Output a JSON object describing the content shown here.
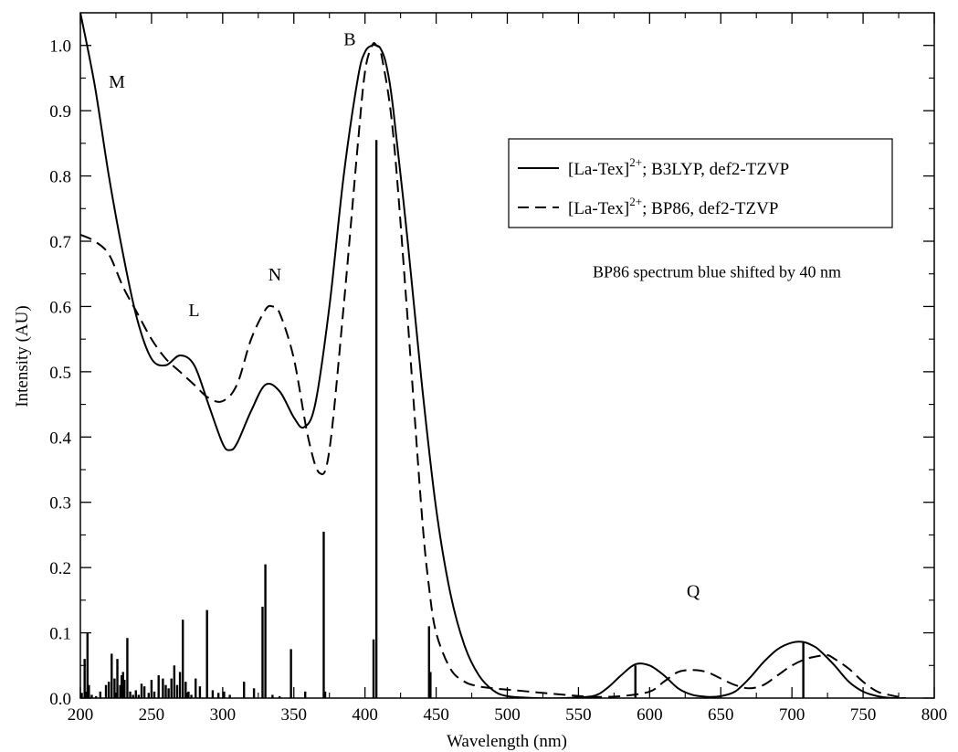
{
  "chart_data": {
    "type": "line",
    "xlabel": "Wavelength (nm)",
    "ylabel": "Intensity (AU)",
    "xlim": [
      200,
      800
    ],
    "ylim": [
      0.0,
      1.05
    ],
    "xticks": [
      200,
      250,
      300,
      350,
      400,
      450,
      500,
      550,
      600,
      650,
      700,
      750,
      800
    ],
    "xtick_labels": [
      "200",
      "250",
      "300",
      "350",
      "400",
      "450",
      "500",
      "550",
      "600",
      "650",
      "700",
      "750",
      "800"
    ],
    "yticks": [
      0.0,
      0.1,
      0.2,
      0.3,
      0.4,
      0.5,
      0.6,
      0.7,
      0.8,
      0.9,
      1.0
    ],
    "ytick_labels": [
      "0.0",
      "0.1",
      "0.2",
      "0.3",
      "0.4",
      "0.5",
      "0.6",
      "0.7",
      "0.8",
      "0.9",
      "1.0"
    ],
    "grid": false,
    "legend_position": "right",
    "series": [
      {
        "name_main": "[La-Tex]",
        "name_sup": "2+",
        "name_rest": "; B3LYP, def2-TZVP",
        "style": "solid",
        "x": [
          200,
          210,
          220,
          230,
          240,
          250,
          260,
          270,
          280,
          290,
          300,
          305,
          310,
          320,
          330,
          340,
          350,
          357,
          365,
          375,
          385,
          395,
          400,
          405,
          408,
          411,
          415,
          420,
          430,
          440,
          450,
          460,
          470,
          480,
          490,
          500,
          520,
          540,
          560,
          570,
          580,
          590,
          600,
          610,
          620,
          630,
          640,
          650,
          660,
          670,
          680,
          690,
          700,
          708,
          715,
          720,
          730,
          740,
          750,
          760,
          770,
          780
        ],
        "y": [
          1.05,
          0.94,
          0.8,
          0.68,
          0.58,
          0.52,
          0.51,
          0.525,
          0.51,
          0.45,
          0.39,
          0.38,
          0.39,
          0.44,
          0.48,
          0.47,
          0.43,
          0.415,
          0.45,
          0.6,
          0.8,
          0.95,
          0.99,
          1.0,
          1.0,
          0.995,
          0.97,
          0.9,
          0.7,
          0.48,
          0.29,
          0.16,
          0.08,
          0.035,
          0.012,
          0.003,
          0.0,
          0.0,
          0.003,
          0.015,
          0.035,
          0.052,
          0.05,
          0.035,
          0.015,
          0.005,
          0.002,
          0.003,
          0.01,
          0.03,
          0.055,
          0.075,
          0.085,
          0.086,
          0.08,
          0.072,
          0.05,
          0.025,
          0.01,
          0.003,
          0.0,
          0.0
        ]
      },
      {
        "name_main": "[La-Tex]",
        "name_sup": "2+",
        "name_rest": "; BP86, def2-TZVP",
        "style": "dashed",
        "x": [
          200,
          210,
          220,
          230,
          240,
          250,
          260,
          270,
          280,
          290,
          300,
          310,
          320,
          330,
          335,
          340,
          350,
          360,
          368,
          375,
          385,
          395,
          400,
          405,
          408,
          412,
          420,
          430,
          440,
          445,
          450,
          460,
          470,
          480,
          490,
          500,
          520,
          540,
          560,
          580,
          600,
          610,
          620,
          630,
          640,
          650,
          660,
          670,
          680,
          690,
          700,
          710,
          720,
          725,
          730,
          740,
          750,
          760,
          770,
          775
        ],
        "y": [
          0.71,
          0.7,
          0.68,
          0.63,
          0.59,
          0.55,
          0.52,
          0.5,
          0.48,
          0.46,
          0.455,
          0.48,
          0.55,
          0.595,
          0.6,
          0.59,
          0.52,
          0.4,
          0.345,
          0.38,
          0.6,
          0.85,
          0.96,
          1.0,
          1.0,
          0.98,
          0.86,
          0.58,
          0.28,
          0.17,
          0.1,
          0.045,
          0.025,
          0.018,
          0.015,
          0.013,
          0.009,
          0.005,
          0.002,
          0.003,
          0.01,
          0.025,
          0.04,
          0.043,
          0.04,
          0.03,
          0.02,
          0.015,
          0.02,
          0.035,
          0.05,
          0.06,
          0.065,
          0.066,
          0.06,
          0.045,
          0.025,
          0.01,
          0.004,
          0.002
        ]
      }
    ],
    "sticks": {
      "x": [
        201,
        203,
        204,
        205,
        206,
        208,
        211,
        214,
        218,
        220,
        222,
        224,
        226,
        228,
        229,
        230,
        231,
        233,
        235,
        237,
        239,
        241,
        243,
        245,
        248,
        250,
        252,
        255,
        258,
        260,
        262,
        264,
        266,
        268,
        270,
        272,
        274,
        276,
        278,
        281,
        284,
        289,
        293,
        297,
        301,
        305,
        315,
        322,
        328,
        330,
        335,
        340,
        348,
        358,
        371,
        372,
        406,
        408,
        445,
        446,
        590,
        708
      ],
      "y": [
        0.008,
        0.06,
        0.01,
        0.1,
        0.02,
        0.005,
        0.003,
        0.01,
        0.02,
        0.025,
        0.068,
        0.03,
        0.06,
        0.02,
        0.035,
        0.04,
        0.028,
        0.092,
        0.01,
        0.005,
        0.012,
        0.005,
        0.022,
        0.018,
        0.008,
        0.028,
        0.01,
        0.035,
        0.03,
        0.02,
        0.015,
        0.03,
        0.05,
        0.02,
        0.04,
        0.12,
        0.025,
        0.01,
        0.005,
        0.03,
        0.018,
        0.135,
        0.012,
        0.008,
        0.01,
        0.005,
        0.025,
        0.015,
        0.14,
        0.205,
        0.005,
        0.003,
        0.075,
        0.01,
        0.255,
        0.01,
        0.09,
        0.855,
        0.11,
        0.04,
        0.05,
        0.085
      ]
    },
    "peak_labels": [
      {
        "text": "M",
        "x": 220,
        "y": 0.935
      },
      {
        "text": "L",
        "x": 276,
        "y": 0.585
      },
      {
        "text": "N",
        "x": 332,
        "y": 0.64
      },
      {
        "text": "B",
        "x": 385,
        "y": 1.0
      },
      {
        "text": "Q",
        "x": 626,
        "y": 0.155
      }
    ],
    "annotations": [
      {
        "text": "BP86 spectrum blue shifted by 40 nm",
        "x": 560,
        "y": 0.645
      }
    ]
  }
}
